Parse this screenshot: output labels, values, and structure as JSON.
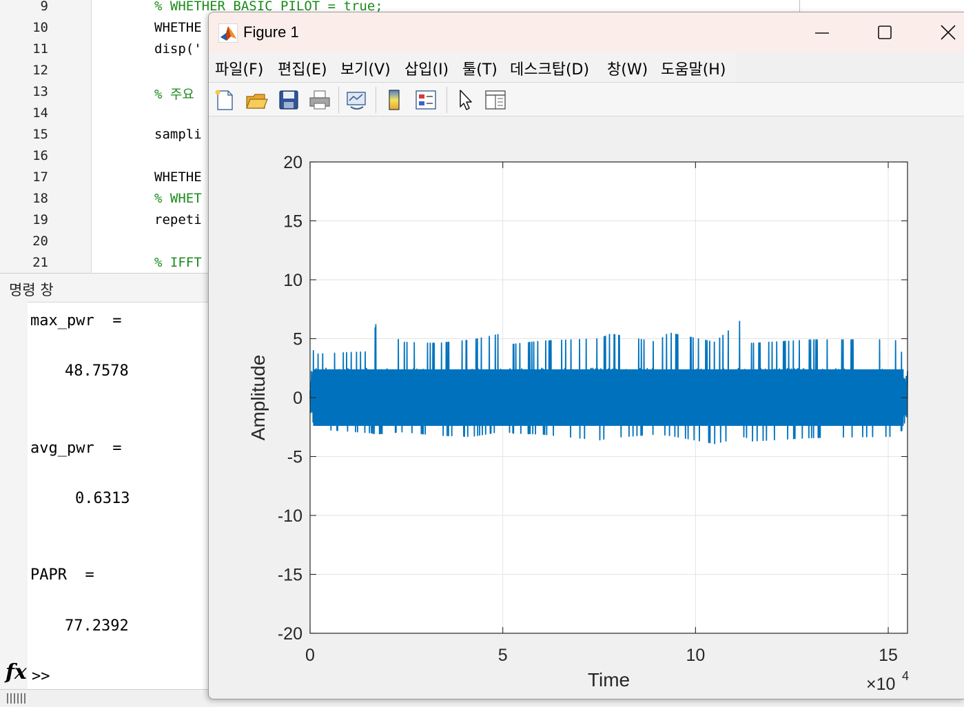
{
  "editor": {
    "lines": [
      {
        "n": "9",
        "text": "% WHETHER BASIC PILOT = true;",
        "kind": "comment"
      },
      {
        "n": "10",
        "text": "WHETHE",
        "kind": "code"
      },
      {
        "n": "11",
        "text": "disp('",
        "kind": "code"
      },
      {
        "n": "12",
        "text": "",
        "kind": "code"
      },
      {
        "n": "13",
        "text": "% 주요",
        "kind": "comment"
      },
      {
        "n": "14",
        "text": "",
        "kind": "code"
      },
      {
        "n": "15",
        "text": "sampli",
        "kind": "code"
      },
      {
        "n": "16",
        "text": "",
        "kind": "code"
      },
      {
        "n": "17",
        "text": "WHETHE",
        "kind": "code"
      },
      {
        "n": "18",
        "text": "% WHET",
        "kind": "comment"
      },
      {
        "n": "19",
        "text": "repeti",
        "kind": "code"
      },
      {
        "n": "20",
        "text": "",
        "kind": "code"
      },
      {
        "n": "21",
        "text": "% IFFT",
        "kind": "comment"
      }
    ]
  },
  "command_window": {
    "title": "명령 창",
    "outputs": [
      {
        "label": "max_pwr  =",
        "value": "48.7578"
      },
      {
        "label": "avg_pwr  =",
        "value": "0.6313"
      },
      {
        "label": "PAPR  =",
        "value": "77.2392"
      }
    ],
    "fx_symbol": "fx",
    "prompt": ">>"
  },
  "figure": {
    "title": "Figure 1",
    "window_controls": {
      "minimize": "minimize-icon",
      "maximize": "maximize-icon",
      "close": "close-icon"
    },
    "menu": [
      {
        "label": "파일(F)"
      },
      {
        "label": "편집(E)"
      },
      {
        "label": "보기(V)"
      },
      {
        "label": "삽입(I)"
      },
      {
        "label": "툴(T)"
      },
      {
        "label": "데스크탑(D)"
      },
      {
        "label": "창(W)"
      },
      {
        "label": "도움말(H)"
      }
    ],
    "toolbar": [
      "new-figure-icon",
      "open-file-icon",
      "save-icon",
      "print-icon",
      "link-plot-icon",
      "insert-colorbar-icon",
      "insert-legend-icon",
      "edit-plot-icon",
      "property-inspector-icon"
    ]
  },
  "chart_data": {
    "type": "line",
    "title": "",
    "xlabel": "Time",
    "ylabel": "Amplitude",
    "xlim": [
      0,
      155000
    ],
    "ylim": [
      -20,
      20
    ],
    "x_exponent_label": "×10",
    "x_exponent_power": "4",
    "xticks": [
      {
        "value": 0,
        "label": "0"
      },
      {
        "value": 50000,
        "label": "5"
      },
      {
        "value": 100000,
        "label": "10"
      },
      {
        "value": 150000,
        "label": "15"
      }
    ],
    "yticks": [
      {
        "value": 20,
        "label": "20"
      },
      {
        "value": 15,
        "label": "15"
      },
      {
        "value": 10,
        "label": "10"
      },
      {
        "value": 5,
        "label": "5"
      },
      {
        "value": 0,
        "label": "0"
      },
      {
        "value": -5,
        "label": "-5"
      },
      {
        "value": -10,
        "label": "-10"
      },
      {
        "value": -15,
        "label": "-15"
      },
      {
        "value": -20,
        "label": "-20"
      }
    ],
    "grid": true,
    "series": [
      {
        "color": "#0072bd",
        "x": [
          0,
          800,
          2000,
          8000,
          16000,
          17000,
          24000,
          33000,
          42000,
          51000,
          52000,
          60000,
          75000,
          78000,
          90000,
          93000,
          105000,
          113000,
          114000,
          130000,
          148000,
          151000,
          154000,
          155000
        ],
        "y_upper": [
          1.0,
          4.0,
          3.7,
          3.8,
          3.9,
          6.2,
          4.7,
          4.6,
          4.9,
          5.5,
          4.5,
          4.8,
          5.0,
          5.4,
          4.7,
          5.5,
          4.7,
          6.9,
          4.6,
          4.9,
          4.9,
          5.4,
          3.5,
          2.9
        ],
        "y_lower": [
          -0.8,
          -2.9,
          -2.7,
          -2.8,
          -3.0,
          -3.1,
          -2.9,
          -3.2,
          -3.3,
          -2.8,
          -3.0,
          -3.1,
          -3.6,
          -3.4,
          -3.1,
          -3.2,
          -3.9,
          -3.3,
          -3.7,
          -3.4,
          -3.3,
          -3.3,
          -2.7,
          -1.5
        ]
      }
    ]
  }
}
